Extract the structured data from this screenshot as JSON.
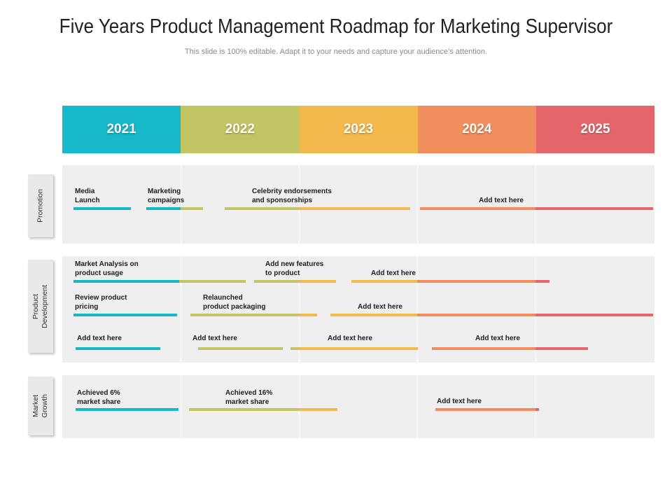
{
  "title": "Five Years Product Management Roadmap for Marketing Supervisor",
  "subtitle": "This slide is 100% editable. Adapt it to your needs and capture your audience’s attention.",
  "years": [
    {
      "label": "2021",
      "color": "#16b8c9"
    },
    {
      "label": "2022",
      "color": "#c2c563"
    },
    {
      "label": "2023",
      "color": "#f4b94c"
    },
    {
      "label": "2024",
      "color": "#f08f5d"
    },
    {
      "label": "2025",
      "color": "#e5666a"
    }
  ],
  "sections": [
    {
      "label": "Promotion"
    },
    {
      "label": "Product\nDevelopment"
    },
    {
      "label": "Market\nGrowth"
    }
  ],
  "tasks": [
    {
      "text": "Media\nLaunch"
    },
    {
      "text": "Marketing\ncampaigns"
    },
    {
      "text": "Celebrity endorsements\nand sponsorships"
    },
    {
      "text": "Add text here"
    },
    {
      "text": "Market Analysis on\nproduct usage"
    },
    {
      "text": "Add new features\nto product"
    },
    {
      "text": "Add text here"
    },
    {
      "text": "Review product\npricing"
    },
    {
      "text": "Relaunched\nproduct packaging"
    },
    {
      "text": "Add text here"
    },
    {
      "text": "Add text here"
    },
    {
      "text": "Add text here"
    },
    {
      "text": "Add text here"
    },
    {
      "text": "Add text here"
    },
    {
      "text": "Achieved 6%\nmarket share"
    },
    {
      "text": "Achieved 16%\nmarket share"
    },
    {
      "text": "Add text here"
    }
  ]
}
